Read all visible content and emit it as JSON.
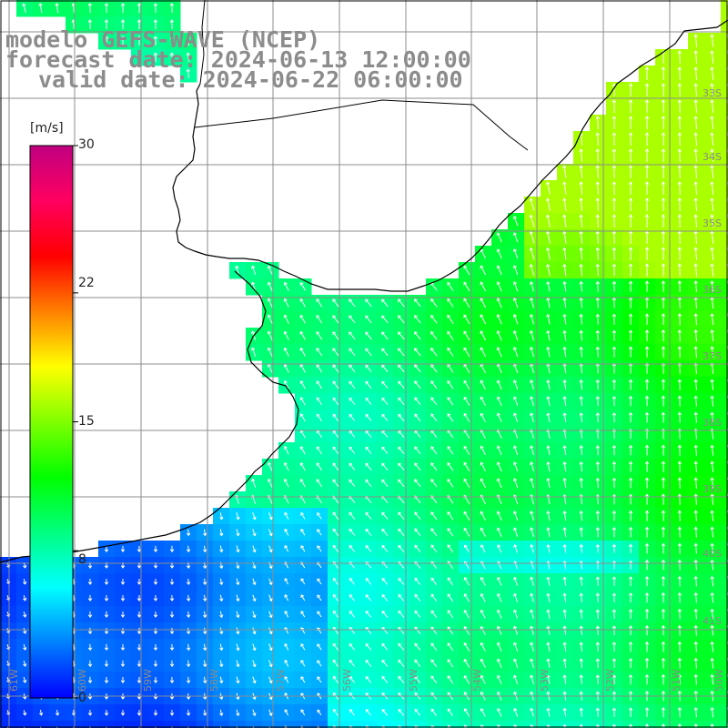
{
  "title": {
    "line1": "modelo GEFS-WAVE (NCEP)",
    "line2": "forecast date: 2024-06-13 12:00:00",
    "line3": "valid date: 2024-06-22 06:00:00"
  },
  "colorbar": {
    "unit": "[m/s]",
    "ticks": [
      "30",
      "22",
      "15",
      "8",
      "0"
    ],
    "tick_values": [
      30,
      22,
      15,
      8,
      0
    ],
    "min": 0,
    "max": 30,
    "colors": [
      "#0000ff",
      "#0080ff",
      "#00ffff",
      "#00ff80",
      "#00ff00",
      "#80ff00",
      "#ffff00",
      "#ff8000",
      "#ff0000",
      "#ff0060",
      "#c00080"
    ]
  },
  "lat_labels": [
    "33S",
    "34S",
    "35S",
    "36S",
    "37S",
    "38S",
    "39S",
    "40S",
    "41S"
  ],
  "lon_labels": [
    "61W",
    "60W",
    "59W",
    "58W",
    "57W",
    "56W",
    "55W",
    "54W",
    "53W",
    "52W",
    "51W",
    "50W"
  ],
  "map_colors": {
    "land": "#ffffff",
    "coastline": "#000000",
    "grid": "#8c8c8c",
    "arrow": "#ffffff"
  }
}
